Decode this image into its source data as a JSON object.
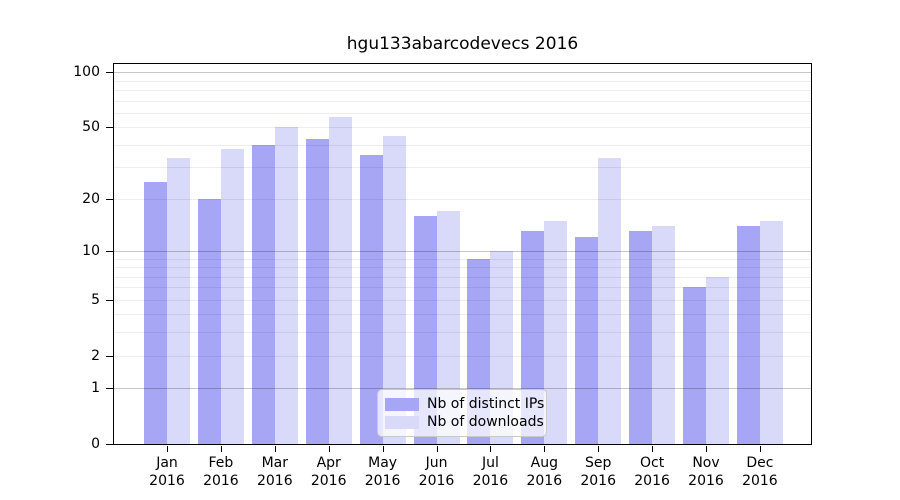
{
  "colors": {
    "distinct_ips_bar": "#a6a6f4",
    "downloads_bar": "#d9d9f9",
    "grid_minor": "rgba(0,0,0,0.07)",
    "grid_decade": "rgba(0,0,0,0.22)",
    "axis": "#000000"
  },
  "legend": {
    "items": [
      {
        "label": "Nb of distinct IPs"
      },
      {
        "label": "Nb of downloads"
      }
    ]
  },
  "chart_data": {
    "type": "bar",
    "title": "hgu133abarcodevecs 2016",
    "xlabel": "",
    "ylabel": "",
    "scale": "log1p",
    "ylim": [
      0,
      111
    ],
    "year": "2016",
    "categories": [
      "Jan",
      "Feb",
      "Mar",
      "Apr",
      "May",
      "Jun",
      "Jul",
      "Aug",
      "Sep",
      "Oct",
      "Nov",
      "Dec"
    ],
    "series": [
      {
        "name": "Nb of distinct IPs",
        "color": "#a6a6f4",
        "values": [
          25,
          20,
          40,
          43,
          35,
          16,
          9,
          13,
          12,
          13,
          6,
          14
        ]
      },
      {
        "name": "Nb of downloads",
        "color": "#d9d9f9",
        "values": [
          34,
          38,
          50,
          57,
          45,
          17,
          10,
          15,
          34,
          14,
          7,
          15
        ]
      }
    ],
    "yticks": [
      0,
      1,
      2,
      5,
      10,
      20,
      50,
      100
    ],
    "grid_minor": [
      2,
      3,
      4,
      5,
      6,
      7,
      8,
      9,
      20,
      30,
      40,
      50,
      60,
      70,
      80,
      90
    ],
    "grid_decade": [
      1,
      10,
      100
    ],
    "grid": "on",
    "legend_position": "bottom-center"
  }
}
